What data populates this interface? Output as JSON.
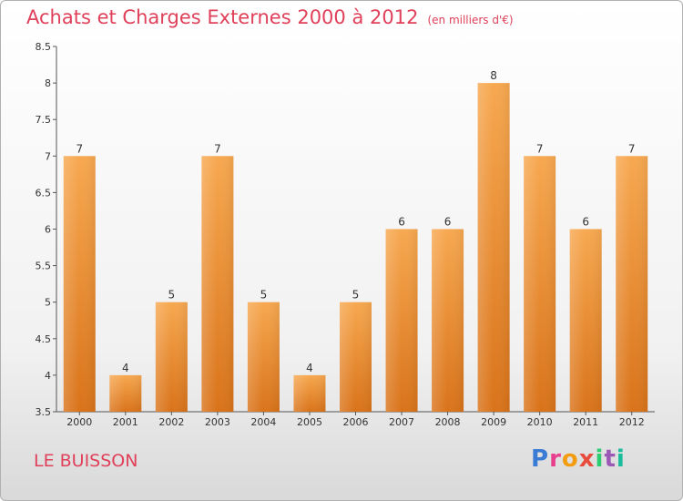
{
  "header": {
    "title": "Achats et Charges Externes 2000 à 2012",
    "unit": "(en milliers d'€)"
  },
  "footer": {
    "place": "LE BUISSON",
    "logo": "Proxiti"
  },
  "colors": {
    "bar_light": "#f7a850",
    "bar_dark": "#d9731a",
    "title": "#e0405a",
    "logo": [
      "#3a7bd5",
      "#e83e8c",
      "#f39c12",
      "#e74c3c",
      "#2ecc71",
      "#9b59b6",
      "#1abc9c"
    ]
  },
  "chart_data": {
    "type": "bar",
    "title": "Achats et Charges Externes 2000 à 2012",
    "subtitle": "(en milliers d'€)",
    "xlabel": "",
    "ylabel": "",
    "categories": [
      "2000",
      "2001",
      "2002",
      "2003",
      "2004",
      "2005",
      "2006",
      "2007",
      "2008",
      "2009",
      "2010",
      "2011",
      "2012"
    ],
    "values": [
      7,
      4,
      5,
      7,
      5,
      4,
      5,
      6,
      6,
      8,
      7,
      6,
      7
    ],
    "data_labels": [
      "7",
      "4",
      "5",
      "7",
      "5",
      "4",
      "5",
      "6",
      "6",
      "8",
      "7",
      "6",
      "7"
    ],
    "ylim": [
      3.5,
      8.5
    ],
    "yticks": [
      "3.5",
      "4",
      "4.5",
      "5",
      "5.5",
      "6",
      "6.5",
      "7",
      "7.5",
      "8",
      "8.5"
    ],
    "grid": false,
    "legend": "none"
  }
}
